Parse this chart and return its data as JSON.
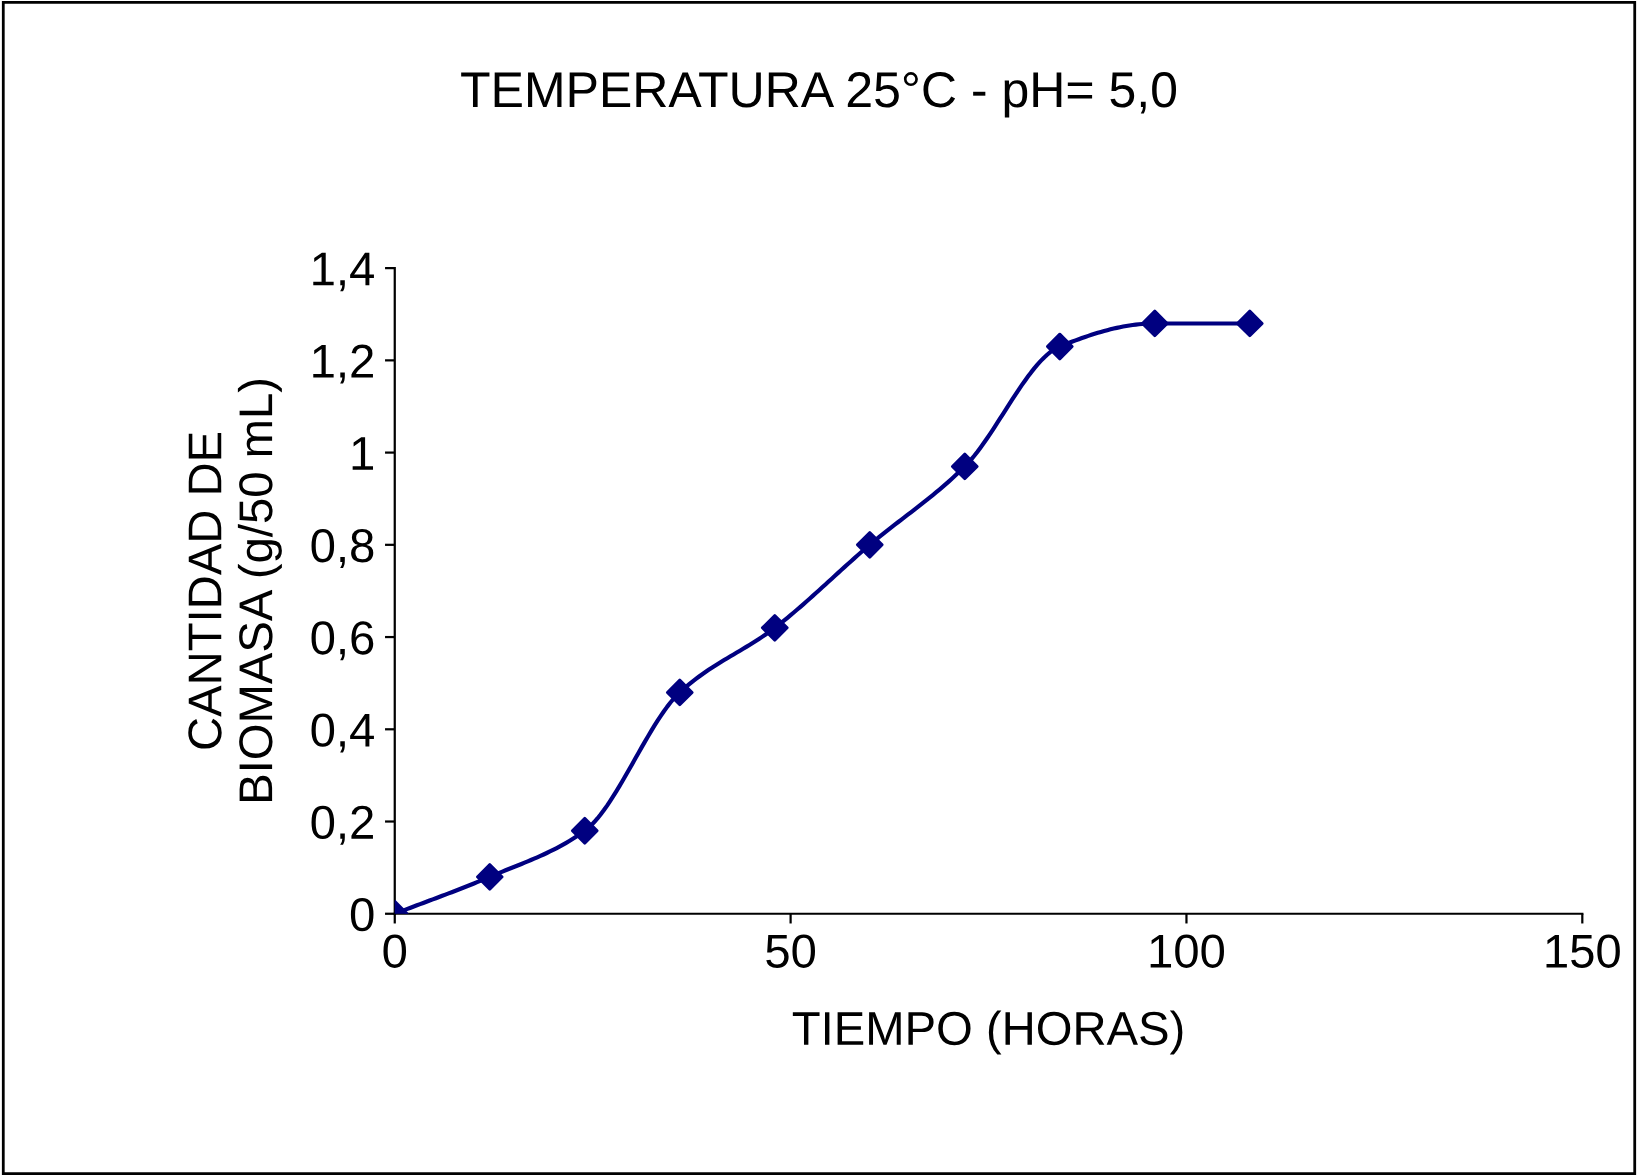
{
  "chart_data": {
    "type": "line",
    "title": "TEMPERATURA 25°C - pH= 5,0",
    "xlabel": "TIEMPO (HORAS)",
    "ylabel": "CANTIDAD DE\nBIOMASA (g/50 mL)",
    "x": [
      0,
      12,
      24,
      36,
      48,
      60,
      72,
      84,
      96,
      108
    ],
    "series": [
      {
        "color": "#000080",
        "values": [
          0,
          0.08,
          0.18,
          0.48,
          0.62,
          0.8,
          0.97,
          1.23,
          1.28,
          1.28
        ]
      }
    ],
    "xlim": [
      0,
      150
    ],
    "xticks": [
      0,
      50,
      100,
      150
    ],
    "ylim": [
      0,
      1.4
    ],
    "yticks": [
      {
        "value": 0,
        "label": "0"
      },
      {
        "value": 0.2,
        "label": "0,2"
      },
      {
        "value": 0.4,
        "label": "0,4"
      },
      {
        "value": 0.6,
        "label": "0,6"
      },
      {
        "value": 0.8,
        "label": "0,8"
      },
      {
        "value": 1,
        "label": "1"
      },
      {
        "value": 1.2,
        "label": "1,2"
      },
      {
        "value": 1.4,
        "label": "1,4"
      }
    ],
    "grid": false,
    "marker": "diamond",
    "line_style": "solid"
  }
}
